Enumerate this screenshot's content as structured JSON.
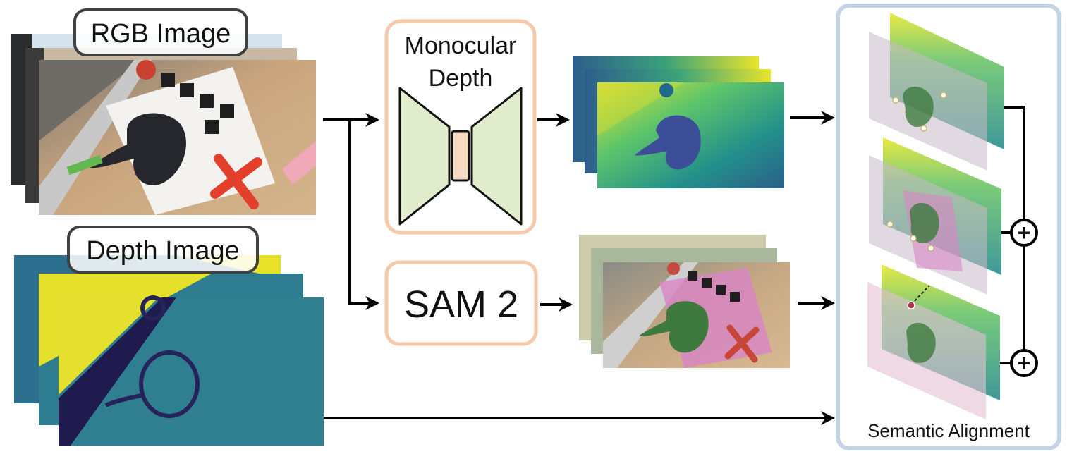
{
  "inputs": {
    "rgb_label": "RGB Image",
    "depth_label": "Depth Image"
  },
  "modules": {
    "mono_line1": "Monocular",
    "mono_line2": "Depth",
    "sam_label": "SAM 2"
  },
  "alignment": {
    "label": "Semantic Alignment",
    "plus_symbol": "+"
  },
  "colors": {
    "module_border": "#f5c9ab",
    "hourglass_fill": "#e0eccb",
    "bottleneck_fill": "#f8d9c2",
    "alignment_border": "#c5d3e6",
    "arrow": "#000000",
    "depth_yellow": "#e5e22f",
    "depth_teal": "#2e8b8f",
    "depth_navy": "#2b2e6a",
    "mask_pink": "#d985c6",
    "object_green": "#3e7a3e"
  }
}
